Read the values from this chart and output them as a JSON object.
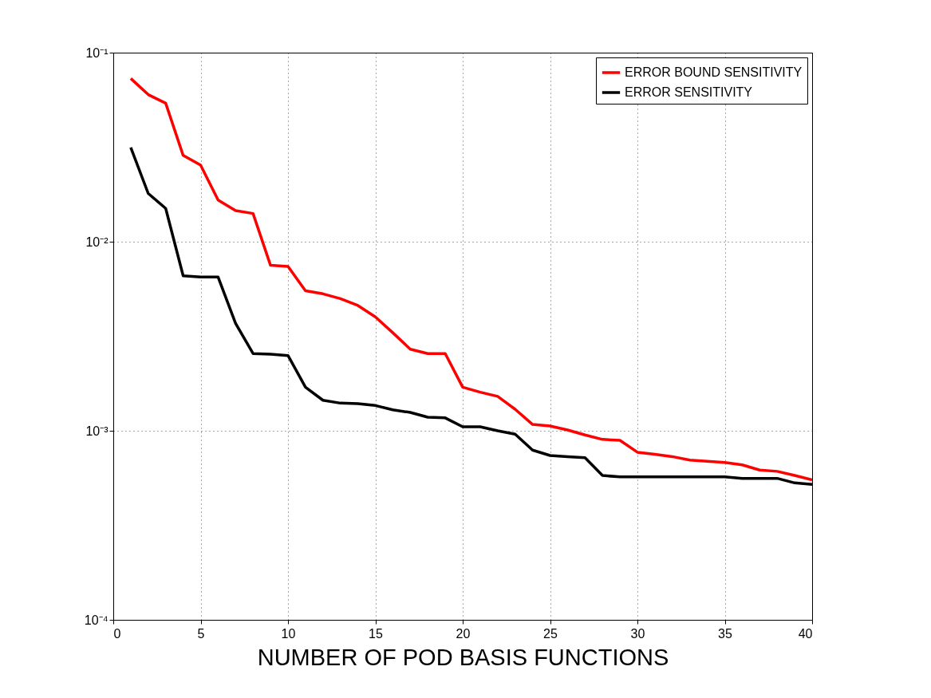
{
  "chart_data": {
    "type": "line",
    "xlabel": "NUMBER OF POD BASIS FUNCTIONS",
    "x": [
      1,
      2,
      3,
      4,
      5,
      6,
      7,
      8,
      9,
      10,
      11,
      12,
      13,
      14,
      15,
      16,
      17,
      18,
      19,
      20,
      21,
      22,
      23,
      24,
      25,
      26,
      27,
      28,
      29,
      30,
      31,
      32,
      33,
      34,
      35,
      36,
      37,
      38,
      39,
      40
    ],
    "series": [
      {
        "name": "ERROR BOUND SENSITIVITY",
        "color": "#ff0000",
        "values": [
          0.073,
          0.06,
          0.054,
          0.0286,
          0.0254,
          0.0166,
          0.0146,
          0.0141,
          0.0075,
          0.0074,
          0.0055,
          0.0053,
          0.005,
          0.0046,
          0.004,
          0.0033,
          0.0027,
          0.00256,
          0.00256,
          0.0017,
          0.0016,
          0.00152,
          0.0013,
          0.00108,
          0.00106,
          0.00101,
          0.00095,
          0.0009,
          0.00089,
          0.00077,
          0.00075,
          0.00073,
          0.0007,
          0.00069,
          0.00068,
          0.00066,
          0.00062,
          0.00061,
          0.00058,
          0.00055
        ]
      },
      {
        "name": "ERROR SENSITIVITY",
        "color": "#000000",
        "values": [
          0.0315,
          0.018,
          0.015,
          0.0066,
          0.0065,
          0.0065,
          0.0037,
          0.00256,
          0.00254,
          0.0025,
          0.0017,
          0.00145,
          0.0014,
          0.00139,
          0.00136,
          0.00129,
          0.00125,
          0.00118,
          0.00117,
          0.00105,
          0.00105,
          0.001,
          0.00096,
          0.00079,
          0.00074,
          0.00073,
          0.00072,
          0.00058,
          0.00057,
          0.00057,
          0.00057,
          0.00057,
          0.00057,
          0.00057,
          0.00057,
          0.00056,
          0.00056,
          0.00056,
          0.00053,
          0.00052
        ]
      }
    ],
    "xlim": [
      0,
      40
    ],
    "xticks": [
      0,
      5,
      10,
      15,
      20,
      25,
      30,
      35,
      40
    ],
    "ylim": [
      0.0001,
      0.1
    ],
    "yticks": [
      {
        "value": 0.0001,
        "label": "10⁻⁴"
      },
      {
        "value": 0.001,
        "label": "10⁻³"
      },
      {
        "value": 0.01,
        "label": "10⁻²"
      },
      {
        "value": 0.1,
        "label": "10⁻¹"
      }
    ],
    "log": true,
    "grid": true,
    "legend": "top right",
    "line_style": "solid",
    "marker": "none"
  }
}
